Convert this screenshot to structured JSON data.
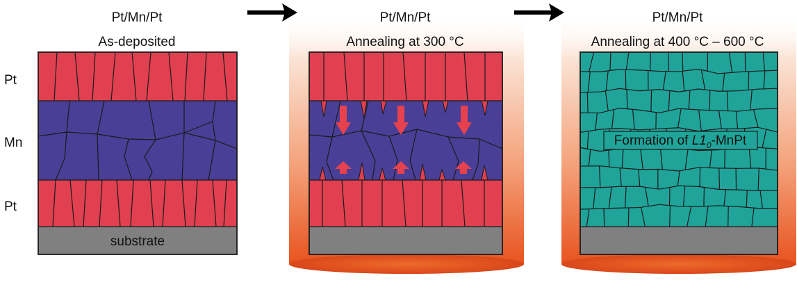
{
  "panels": [
    {
      "title": "Pt/Mn/Pt",
      "subtitle": "As-deposited"
    },
    {
      "title": "Pt/Mn/Pt",
      "subtitle": "Annealing at 300 °C"
    },
    {
      "title": "Pt/Mn/Pt",
      "subtitle": "Annealing at 400 °C – 600 °C"
    }
  ],
  "layer_labels": {
    "top": "Pt",
    "middle": "Mn",
    "bottom": "Pt"
  },
  "substrate_label": "substrate",
  "formation_label": {
    "prefix": "Formation of ",
    "phase": "L1",
    "subscript": "0",
    "suffix": "-MnPt"
  },
  "colors": {
    "pt": "#e04050",
    "mn": "#4a3f96",
    "mnpt": "#20a49a",
    "substrate": "#808080",
    "heat_glow": "#e8531f",
    "diffusion_arrow": "#e8414e"
  },
  "icons": [
    "right-arrow-icon",
    "right-arrow-icon",
    "down-arrow-icon",
    "up-arrow-icon"
  ]
}
